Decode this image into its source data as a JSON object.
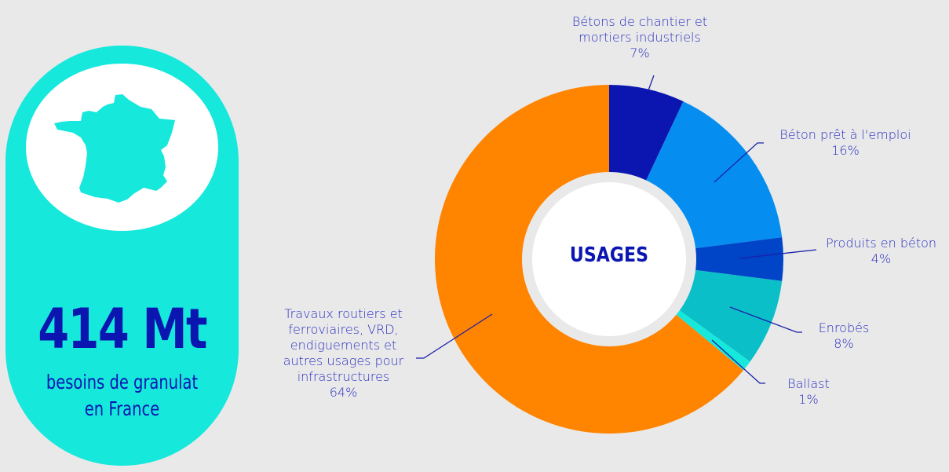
{
  "infographic": {
    "total_value": "414 Mt",
    "total_label_line1": "besoins de granulat",
    "total_label_line2": "en France",
    "map_icon": "france-map-icon",
    "center_title": "USAGES"
  },
  "colors": {
    "background": "#e9e9e9",
    "pill": "#16e8dc",
    "text_dark_blue": "#0b16b0",
    "label_blue": "#2a2fc0"
  },
  "chart_data": {
    "type": "pie",
    "subtype": "donut",
    "title": "USAGES",
    "categories": [
      "Bétons de chantier et mortiers industriels",
      "Béton prêt à l'emploi",
      "Produits en béton",
      "Enrobés",
      "Ballast",
      "Travaux routiers et ferroviaires, VRD, endiguements et autres usages pour infrastructures"
    ],
    "values": [
      7,
      16,
      4,
      8,
      1,
      64
    ],
    "unit": "%",
    "colors": [
      "#0b16b0",
      "#058ef0",
      "#0044c8",
      "#0bbfc8",
      "#16e8dc",
      "#ff8400"
    ]
  },
  "labels": [
    {
      "line1": "Bétons de chantier et",
      "line2": "mortiers industriels",
      "pct": "7%"
    },
    {
      "line1": "Béton prêt à l'emploi",
      "pct": "16%"
    },
    {
      "line1": "Produits en béton",
      "pct": "4%"
    },
    {
      "line1": "Enrobés",
      "pct": "8%"
    },
    {
      "line1": "Ballast",
      "pct": "1%"
    },
    {
      "line1": "Travaux routiers et",
      "line2": "ferroviaires, VRD,",
      "line3": "endiguements et",
      "line4": "autres usages pour",
      "line5": "infrastructures",
      "pct": "64%"
    }
  ]
}
